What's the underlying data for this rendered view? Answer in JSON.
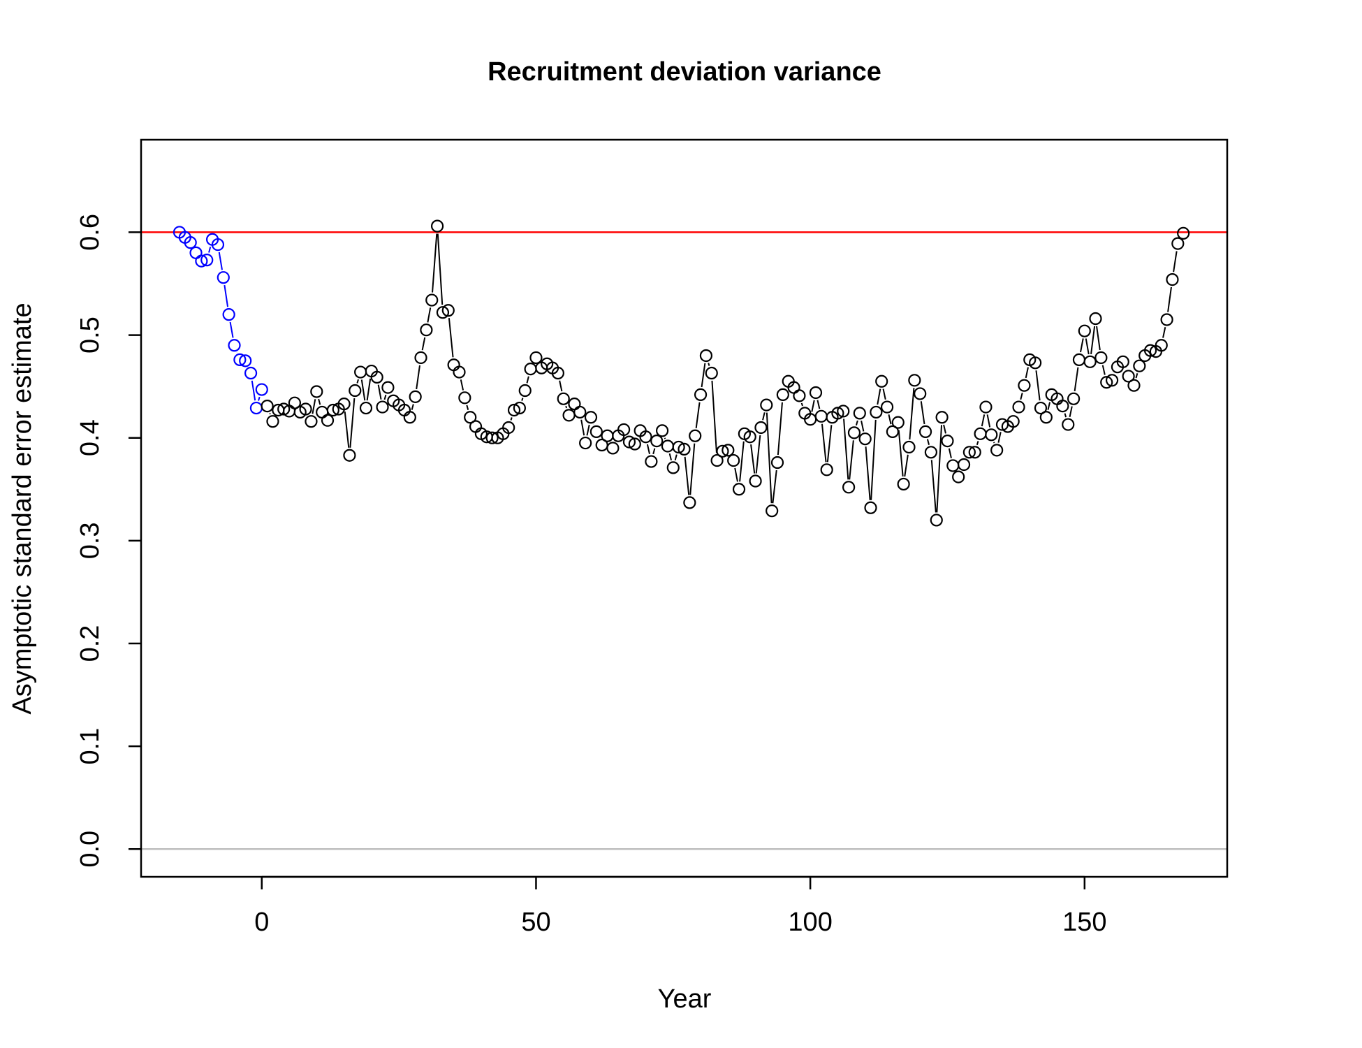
{
  "chart_data": {
    "type": "scatter",
    "title": "Recruitment deviation variance",
    "xlabel": "Year",
    "ylabel": "Asymptotic standard error estimate",
    "xlim": [
      -22,
      176
    ],
    "ylim": [
      -0.027,
      0.69
    ],
    "xticks": [
      0,
      50,
      100,
      150
    ],
    "yticks": [
      0.0,
      0.1,
      0.2,
      0.3,
      0.4,
      0.5,
      0.6
    ],
    "ytick_labels": [
      "0.0",
      "0.1",
      "0.2",
      "0.3",
      "0.4",
      "0.5",
      "0.6"
    ],
    "xtick_labels": [
      "0",
      "50",
      "100",
      "150"
    ],
    "reference_lines": [
      {
        "y": 0.6,
        "color": "#ff0000"
      },
      {
        "y": 0.0,
        "color": "#bebebe"
      }
    ],
    "grid": false,
    "series": [
      {
        "color": "#0000ff",
        "x": [
          -15,
          -14,
          -13,
          -12,
          -11,
          -10,
          -9,
          -8,
          -7,
          -6,
          -5,
          -4,
          -3,
          -2,
          -1,
          0
        ],
        "y": [
          0.6,
          0.595,
          0.59,
          0.58,
          0.572,
          0.573,
          0.593,
          0.588,
          0.556,
          0.52,
          0.49,
          0.476,
          0.475,
          0.463,
          0.429,
          0.447
        ]
      },
      {
        "color": "#000000",
        "x": [
          1,
          2,
          3,
          4,
          5,
          6,
          7,
          8,
          9,
          10,
          11,
          12,
          13,
          14,
          15,
          16,
          17,
          18,
          19,
          20,
          21,
          22,
          23,
          24,
          25,
          26,
          27,
          28,
          29,
          30,
          31,
          32,
          33,
          34,
          35,
          36,
          37,
          38,
          39,
          40,
          41,
          42,
          43,
          44,
          45,
          46,
          47,
          48,
          49,
          50,
          51,
          52,
          53,
          54,
          55,
          56,
          57,
          58,
          59,
          60,
          61,
          62,
          63,
          64,
          65,
          66,
          67,
          68,
          69,
          70,
          71,
          72,
          73,
          74,
          75,
          76,
          77,
          78,
          79,
          80,
          81,
          82,
          83,
          84,
          85,
          86,
          87,
          88,
          89,
          90,
          91,
          92,
          93,
          94,
          95,
          96,
          97,
          98,
          99,
          100,
          101,
          102,
          103,
          104,
          105,
          106,
          107,
          108,
          109,
          110,
          111,
          112,
          113,
          114,
          115,
          116,
          117,
          118,
          119,
          120,
          121,
          122,
          123,
          124,
          125,
          126,
          127,
          128,
          129,
          130,
          131,
          132,
          133,
          134,
          135,
          136,
          137,
          138,
          139,
          140,
          141,
          142,
          143,
          144,
          145,
          146,
          147,
          148,
          149,
          150,
          151,
          152,
          153,
          154,
          155,
          156,
          157,
          158,
          159,
          160,
          161,
          162,
          163,
          164,
          165,
          166,
          167,
          168
        ],
        "y": [
          0.431,
          0.416,
          0.427,
          0.428,
          0.426,
          0.434,
          0.425,
          0.428,
          0.416,
          0.445,
          0.425,
          0.417,
          0.427,
          0.428,
          0.433,
          0.383,
          0.446,
          0.464,
          0.429,
          0.465,
          0.459,
          0.43,
          0.449,
          0.436,
          0.432,
          0.427,
          0.42,
          0.44,
          0.478,
          0.505,
          0.534,
          0.606,
          0.522,
          0.524,
          0.471,
          0.464,
          0.439,
          0.42,
          0.411,
          0.404,
          0.401,
          0.4,
          0.4,
          0.404,
          0.41,
          0.427,
          0.429,
          0.446,
          0.467,
          0.478,
          0.468,
          0.472,
          0.468,
          0.463,
          0.438,
          0.422,
          0.433,
          0.425,
          0.395,
          0.42,
          0.406,
          0.393,
          0.402,
          0.39,
          0.402,
          0.408,
          0.396,
          0.394,
          0.407,
          0.401,
          0.377,
          0.397,
          0.407,
          0.392,
          0.371,
          0.391,
          0.389,
          0.337,
          0.402,
          0.442,
          0.48,
          0.463,
          0.378,
          0.387,
          0.388,
          0.378,
          0.35,
          0.404,
          0.401,
          0.358,
          0.41,
          0.432,
          0.329,
          0.376,
          0.442,
          0.455,
          0.449,
          0.441,
          0.424,
          0.418,
          0.444,
          0.421,
          0.369,
          0.42,
          0.424,
          0.426,
          0.352,
          0.405,
          0.424,
          0.399,
          0.332,
          0.425,
          0.455,
          0.43,
          0.406,
          0.415,
          0.355,
          0.391,
          0.456,
          0.443,
          0.406,
          0.386,
          0.32,
          0.42,
          0.397,
          0.373,
          0.362,
          0.374,
          0.386,
          0.386,
          0.404,
          0.43,
          0.403,
          0.388,
          0.413,
          0.411,
          0.416,
          0.43,
          0.451,
          0.476,
          0.473,
          0.429,
          0.42,
          0.442,
          0.438,
          0.431,
          0.413,
          0.438,
          0.476,
          0.504,
          0.474,
          0.516,
          0.478,
          0.454,
          0.456,
          0.469,
          0.474,
          0.46,
          0.451,
          0.47,
          0.48,
          0.485,
          0.484,
          0.49,
          0.515,
          0.554,
          0.589,
          0.599
        ]
      }
    ]
  }
}
